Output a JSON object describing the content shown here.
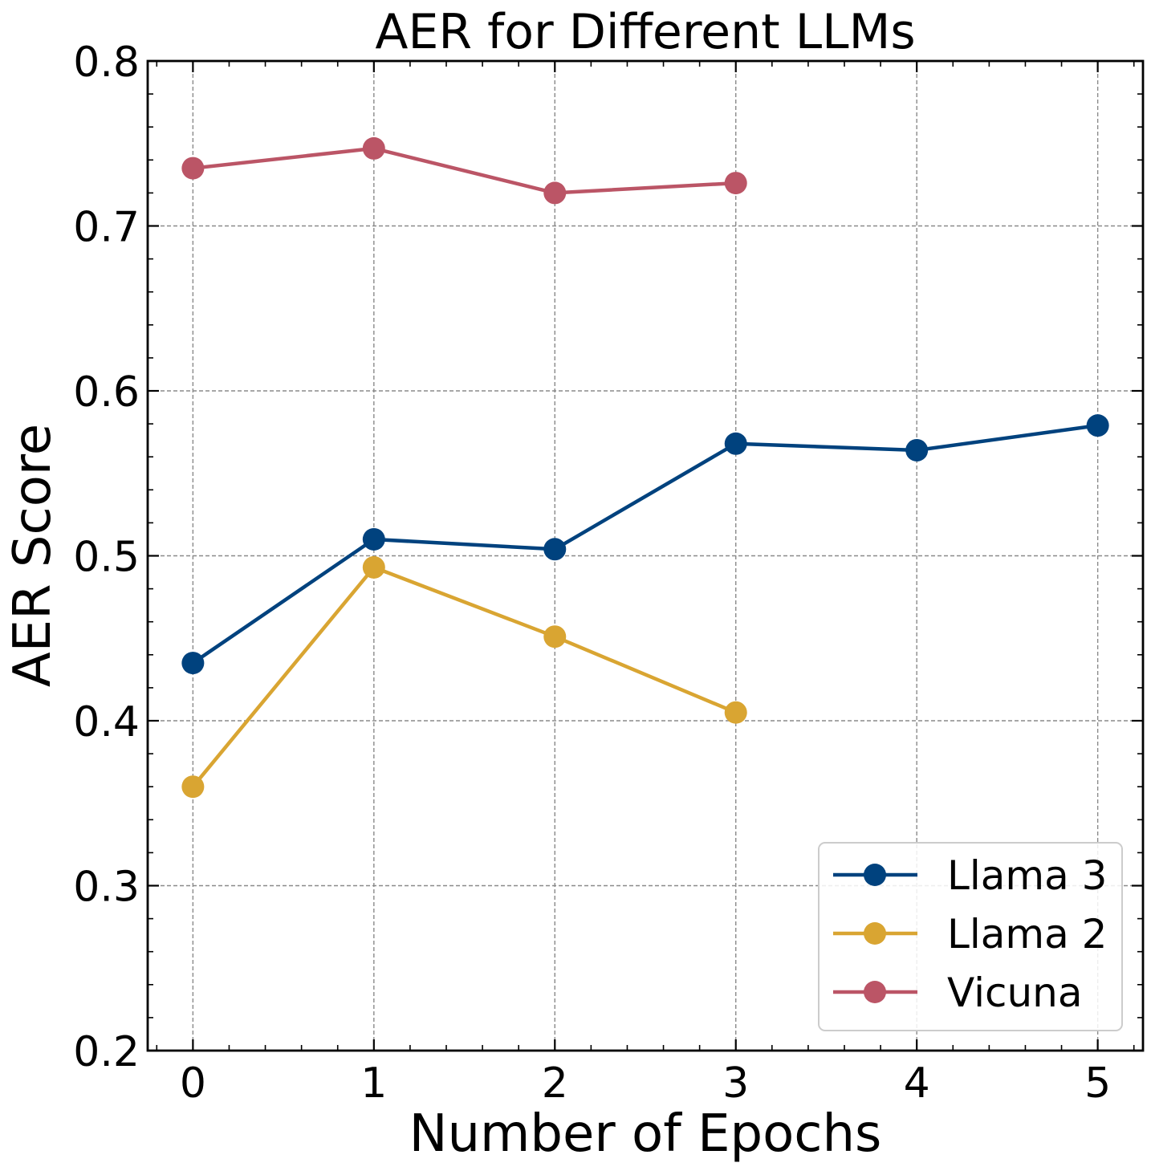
{
  "chart_data": {
    "type": "line",
    "title": "AER for Different LLMs",
    "xlabel": "Number of Epochs",
    "ylabel": "AER Score",
    "xlim": [
      -0.25,
      5.25
    ],
    "ylim": [
      0.2,
      0.8
    ],
    "xticks": [
      0,
      1,
      2,
      3,
      4,
      5
    ],
    "xtick_labels": [
      "0",
      "1",
      "2",
      "3",
      "4",
      "5"
    ],
    "yticks": [
      0.2,
      0.3,
      0.4,
      0.5,
      0.6,
      0.7,
      0.8
    ],
    "ytick_labels": [
      "0.2",
      "0.3",
      "0.4",
      "0.5",
      "0.6",
      "0.7",
      "0.8"
    ],
    "grid": true,
    "legend_position": "lower-right",
    "series": [
      {
        "name": "Llama 3",
        "color": "#00427e",
        "x": [
          0,
          1,
          2,
          3,
          4,
          5
        ],
        "values": [
          0.435,
          0.51,
          0.504,
          0.568,
          0.564,
          0.579
        ]
      },
      {
        "name": "Llama 2",
        "color": "#d9a532",
        "x": [
          0,
          1,
          2,
          3
        ],
        "values": [
          0.36,
          0.493,
          0.451,
          0.405
        ]
      },
      {
        "name": "Vicuna",
        "color": "#bb5566",
        "x": [
          0,
          1,
          2,
          3
        ],
        "values": [
          0.735,
          0.747,
          0.72,
          0.726
        ]
      }
    ]
  }
}
